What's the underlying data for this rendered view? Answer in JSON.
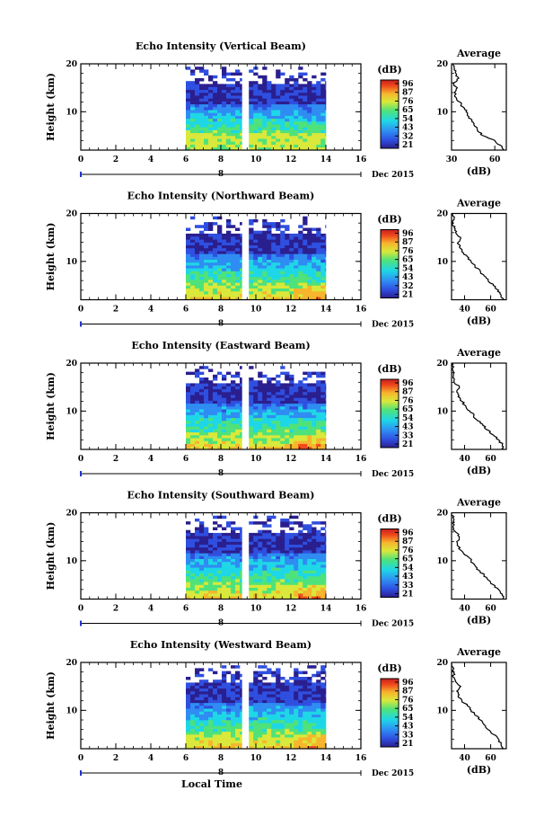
{
  "chart_data": [
    {
      "type": "heatmap",
      "title": "Echo Intensity (Vertical Beam)",
      "ylabel": "Height (km)",
      "xlim": [
        0,
        16
      ],
      "ylim": [
        2,
        20
      ],
      "xticks": [
        "0",
        "2",
        "4",
        "6",
        "8",
        "10",
        "12",
        "14",
        "16"
      ],
      "yticks": [
        "10",
        "20"
      ],
      "date_label": "Dec 2015",
      "date_marker": "8",
      "colorbar": {
        "unit": "(dB)",
        "ticks": [
          "96",
          "87",
          "76",
          "65",
          "54",
          "43",
          "32",
          "21"
        ]
      },
      "data_gap": [
        9.2,
        9.6
      ],
      "data_segments": [
        [
          6,
          9.2
        ],
        [
          9.6,
          14
        ]
      ],
      "average_profile": {
        "title": "Average",
        "xlabel": "(dB)",
        "xticks": [
          "30",
          "60"
        ],
        "xlim": [
          30,
          68
        ],
        "ylim": [
          2,
          20
        ],
        "yticks": [
          "10",
          "20"
        ],
        "profile": [
          [
            66,
            2
          ],
          [
            64,
            3
          ],
          [
            60,
            4
          ],
          [
            52,
            5
          ],
          [
            48,
            6
          ],
          [
            46,
            7
          ],
          [
            44,
            8
          ],
          [
            42,
            9
          ],
          [
            40,
            10
          ],
          [
            38,
            11
          ],
          [
            36,
            12
          ],
          [
            33,
            13
          ],
          [
            32,
            14
          ],
          [
            34,
            15
          ],
          [
            31,
            16
          ],
          [
            35,
            17
          ],
          [
            33,
            18
          ],
          [
            32,
            19
          ],
          [
            31,
            20
          ]
        ]
      }
    },
    {
      "type": "heatmap",
      "title": "Echo Intensity (Northward Beam)",
      "ylabel": "Height (km)",
      "xlim": [
        0,
        16
      ],
      "ylim": [
        2,
        20
      ],
      "xticks": [
        "0",
        "2",
        "4",
        "6",
        "8",
        "10",
        "12",
        "14",
        "16"
      ],
      "yticks": [
        "10",
        "20"
      ],
      "date_label": "Dec 2015",
      "date_marker": "8",
      "colorbar": {
        "unit": "(dB)",
        "ticks": [
          "96",
          "87",
          "76",
          "65",
          "54",
          "43",
          "32",
          "21"
        ]
      },
      "data_gap": [
        9.2,
        9.6
      ],
      "data_segments": [
        [
          6,
          9.2
        ],
        [
          9.6,
          14
        ]
      ],
      "average_profile": {
        "title": "Average",
        "xlabel": "(dB)",
        "xticks": [
          "40",
          "60"
        ],
        "xlim": [
          30,
          72
        ],
        "ylim": [
          2,
          20
        ],
        "yticks": [
          "10",
          "20"
        ],
        "profile": [
          [
            70,
            2
          ],
          [
            68,
            3
          ],
          [
            66,
            4
          ],
          [
            62,
            5
          ],
          [
            58,
            6
          ],
          [
            55,
            7
          ],
          [
            52,
            8
          ],
          [
            48,
            9
          ],
          [
            45,
            10
          ],
          [
            42,
            11
          ],
          [
            38,
            12
          ],
          [
            36,
            13
          ],
          [
            35,
            14
          ],
          [
            37,
            15
          ],
          [
            33,
            16
          ],
          [
            32,
            17
          ],
          [
            31,
            18
          ],
          [
            32,
            19
          ],
          [
            31,
            20
          ]
        ]
      }
    },
    {
      "type": "heatmap",
      "title": "Echo Intensity (Eastward Beam)",
      "ylabel": "Height (km)",
      "xlim": [
        0,
        16
      ],
      "ylim": [
        2,
        20
      ],
      "xticks": [
        "0",
        "2",
        "4",
        "6",
        "8",
        "10",
        "12",
        "14",
        "16"
      ],
      "yticks": [
        "10",
        "20"
      ],
      "date_label": "Dec 2015",
      "date_marker": "8",
      "colorbar": {
        "unit": "(dB)",
        "ticks": [
          "96",
          "87",
          "76",
          "65",
          "54",
          "43",
          "33",
          "21"
        ]
      },
      "data_gap": [
        9.2,
        9.6
      ],
      "data_segments": [
        [
          6,
          9.2
        ],
        [
          9.6,
          14
        ]
      ],
      "average_profile": {
        "title": "Average",
        "xlabel": "(dB)",
        "xticks": [
          "40",
          "60"
        ],
        "xlim": [
          30,
          72
        ],
        "ylim": [
          2,
          20
        ],
        "yticks": [
          "10",
          "20"
        ],
        "profile": [
          [
            70,
            2
          ],
          [
            69,
            3
          ],
          [
            66,
            4
          ],
          [
            62,
            5
          ],
          [
            58,
            6
          ],
          [
            54,
            7
          ],
          [
            50,
            8
          ],
          [
            47,
            9
          ],
          [
            44,
            10
          ],
          [
            41,
            11
          ],
          [
            38,
            12
          ],
          [
            35,
            13
          ],
          [
            34,
            14
          ],
          [
            36,
            15
          ],
          [
            32,
            16
          ],
          [
            31,
            17
          ],
          [
            32,
            18
          ],
          [
            31,
            19
          ],
          [
            30,
            20
          ]
        ]
      }
    },
    {
      "type": "heatmap",
      "title": "Echo Intensity (Southward Beam)",
      "ylabel": "Height (km)",
      "xlim": [
        0,
        16
      ],
      "ylim": [
        2,
        20
      ],
      "xticks": [
        "0",
        "2",
        "4",
        "6",
        "8",
        "10",
        "12",
        "14",
        "16"
      ],
      "yticks": [
        "10",
        "20"
      ],
      "date_label": "Dec 2015",
      "date_marker": "8",
      "colorbar": {
        "unit": "(dB)",
        "ticks": [
          "96",
          "87",
          "76",
          "65",
          "54",
          "43",
          "33",
          "21"
        ]
      },
      "data_gap": [
        9.2,
        9.6
      ],
      "data_segments": [
        [
          6,
          9.2
        ],
        [
          9.6,
          14
        ]
      ],
      "average_profile": {
        "title": "Average",
        "xlabel": "(dB)",
        "xticks": [
          "40",
          "60"
        ],
        "xlim": [
          30,
          72
        ],
        "ylim": [
          2,
          20
        ],
        "yticks": [
          "10",
          "20"
        ],
        "profile": [
          [
            70,
            2
          ],
          [
            69,
            3
          ],
          [
            66,
            4
          ],
          [
            62,
            5
          ],
          [
            58,
            6
          ],
          [
            55,
            7
          ],
          [
            51,
            8
          ],
          [
            48,
            9
          ],
          [
            45,
            10
          ],
          [
            42,
            11
          ],
          [
            38,
            12
          ],
          [
            35,
            13
          ],
          [
            34,
            14
          ],
          [
            36,
            15
          ],
          [
            33,
            16
          ],
          [
            31,
            17
          ],
          [
            32,
            18
          ],
          [
            31,
            19
          ],
          [
            30,
            20
          ]
        ]
      }
    },
    {
      "type": "heatmap",
      "title": "Echo Intensity (Westward Beam)",
      "ylabel": "Height (km)",
      "xlim": [
        0,
        16
      ],
      "ylim": [
        2,
        20
      ],
      "xticks": [
        "0",
        "2",
        "4",
        "6",
        "8",
        "10",
        "12",
        "14",
        "16"
      ],
      "yticks": [
        "10",
        "20"
      ],
      "date_label": "Dec 2015",
      "date_marker": "8",
      "xlabel": "Local Time",
      "colorbar": {
        "unit": "(dB)",
        "ticks": [
          "96",
          "87",
          "76",
          "65",
          "54",
          "43",
          "33",
          "21"
        ]
      },
      "data_gap": [
        9.2,
        9.6
      ],
      "data_segments": [
        [
          6,
          9.2
        ],
        [
          9.6,
          14
        ]
      ],
      "average_profile": {
        "title": "Average",
        "xlabel": "(dB)",
        "xticks": [
          "40",
          "60"
        ],
        "xlim": [
          30,
          72
        ],
        "ylim": [
          2,
          20
        ],
        "yticks": [
          "10",
          "20"
        ],
        "profile": [
          [
            70,
            2
          ],
          [
            68,
            3
          ],
          [
            66,
            4
          ],
          [
            62,
            5
          ],
          [
            58,
            6
          ],
          [
            55,
            7
          ],
          [
            52,
            8
          ],
          [
            48,
            9
          ],
          [
            45,
            10
          ],
          [
            42,
            11
          ],
          [
            38,
            12
          ],
          [
            35,
            13
          ],
          [
            34,
            14
          ],
          [
            37,
            15
          ],
          [
            33,
            16
          ],
          [
            31,
            17
          ],
          [
            32,
            18
          ],
          [
            31,
            19
          ],
          [
            30,
            20
          ]
        ]
      }
    }
  ],
  "colors": {
    "colormap": [
      "#2a1f8f",
      "#2f4fe0",
      "#2f8cf2",
      "#1ed7e6",
      "#4fe27a",
      "#d9e83a",
      "#f6b52d",
      "#ef4b1c",
      "#c81e1e"
    ],
    "date_marker": "#2233cc"
  }
}
